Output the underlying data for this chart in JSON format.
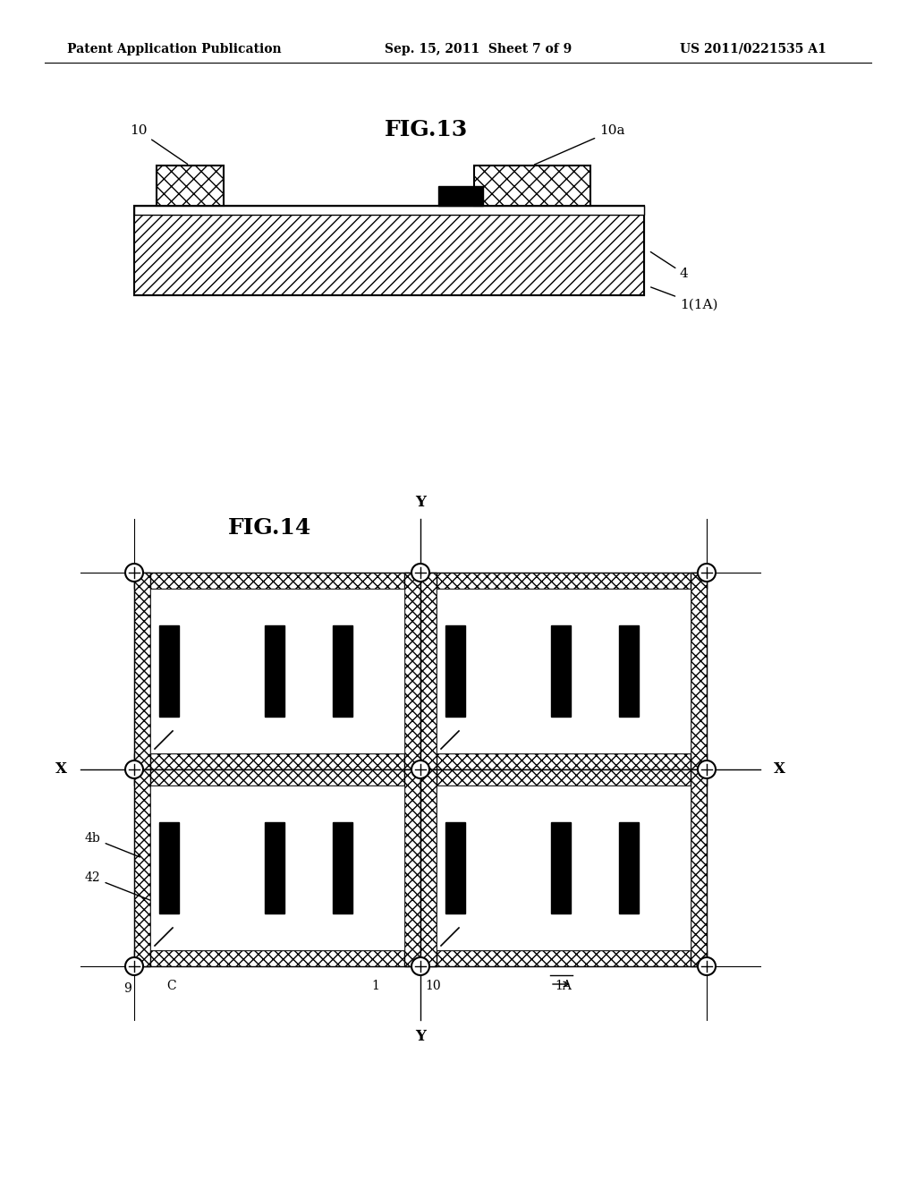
{
  "header_left": "Patent Application Publication",
  "header_mid": "Sep. 15, 2011  Sheet 7 of 9",
  "header_right": "US 2011/0221535 A1",
  "fig13_title": "FIG.13",
  "fig14_title": "FIG.14",
  "background": "#ffffff"
}
